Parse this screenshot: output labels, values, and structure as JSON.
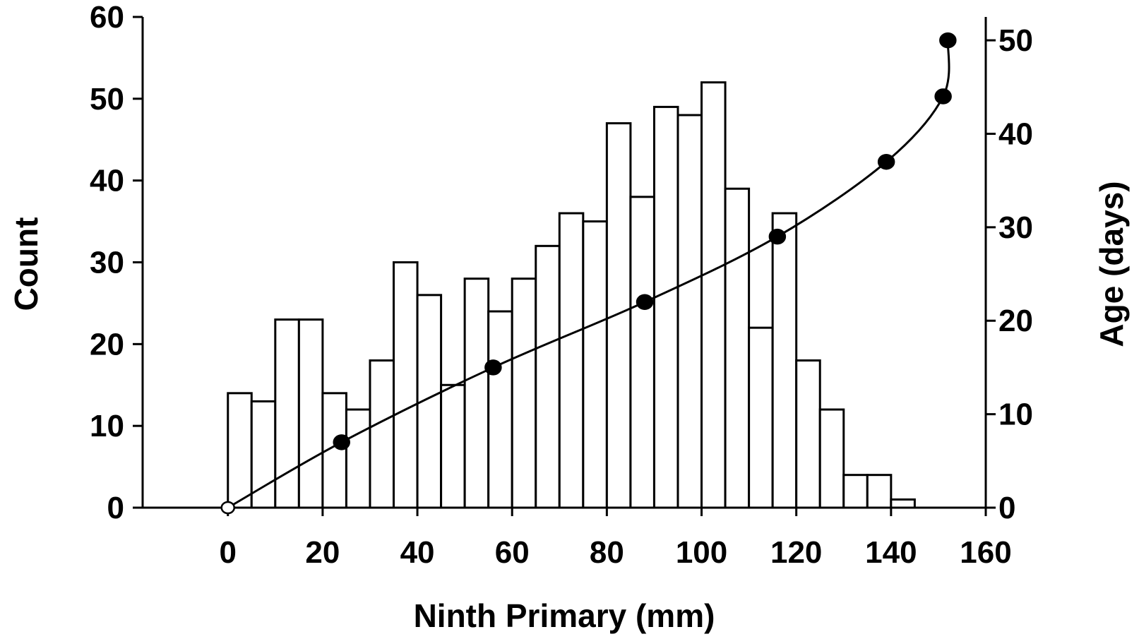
{
  "chart_data": {
    "type": "bar",
    "xlabel": "Ninth Primary (mm)",
    "ylabel": "Count",
    "y2label": "Age (days)",
    "xlim": [
      -18,
      160
    ],
    "ylim": [
      0,
      60
    ],
    "y2lim": [
      0,
      52.5
    ],
    "xticks": [
      "0",
      "20",
      "40",
      "60",
      "80",
      "100",
      "120",
      "140",
      "160"
    ],
    "yticks": [
      "0",
      "10",
      "20",
      "30",
      "40",
      "50",
      "60"
    ],
    "y2ticks": [
      "0",
      "10",
      "20",
      "30",
      "40",
      "50"
    ],
    "grid": false,
    "bins": {
      "width": 5,
      "left_edges": [
        0,
        5,
        10,
        15,
        20,
        25,
        30,
        35,
        40,
        45,
        50,
        55,
        60,
        65,
        70,
        75,
        80,
        85,
        90,
        95,
        100,
        105,
        110,
        115,
        120,
        125,
        130,
        135,
        140
      ],
      "counts": [
        14,
        13,
        23,
        23,
        14,
        12,
        18,
        30,
        26,
        15,
        28,
        24,
        28,
        32,
        36,
        35,
        47,
        38,
        49,
        48,
        52,
        39,
        22,
        36,
        18,
        12,
        4,
        4,
        1
      ]
    },
    "age_series": {
      "axis": "right",
      "points": [
        {
          "x": 0,
          "y": 0,
          "marker": "open"
        },
        {
          "x": 24,
          "y": 7,
          "marker": "filled"
        },
        {
          "x": 56,
          "y": 15,
          "marker": "filled"
        },
        {
          "x": 88,
          "y": 22,
          "marker": "filled"
        },
        {
          "x": 116,
          "y": 29,
          "marker": "filled"
        },
        {
          "x": 139,
          "y": 37,
          "marker": "filled"
        },
        {
          "x": 151,
          "y": 44,
          "marker": "filled"
        },
        {
          "x": 152,
          "y": 50,
          "marker": "filled"
        }
      ]
    }
  }
}
